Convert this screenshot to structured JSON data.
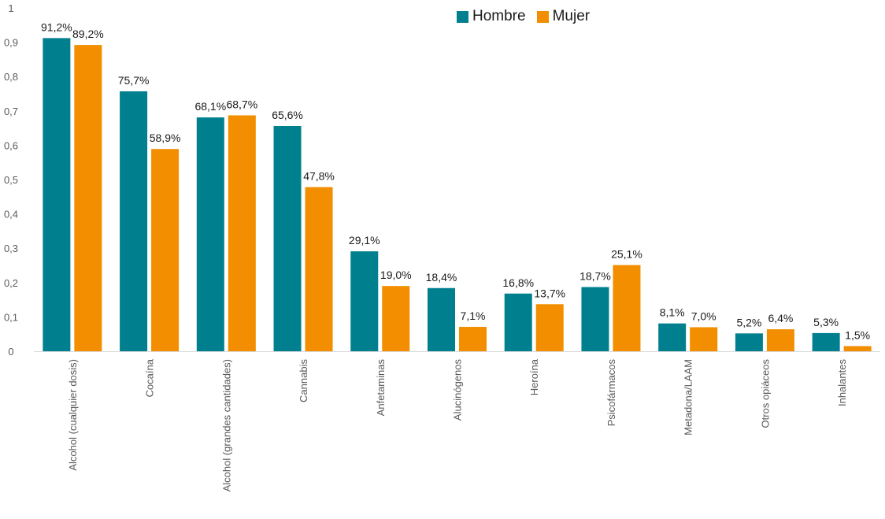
{
  "chart_data": {
    "type": "bar",
    "categories": [
      "Alcohol (cualquier dosis)",
      "Cocaína",
      "Alcohol (grandes cantidades)",
      "Cannabis",
      "Anfetaminas",
      "Alucinógenos",
      "Heroína",
      "Psicofármacos",
      "Metadona/LAAM",
      "Otros opiáceos",
      "Inhalantes"
    ],
    "series": [
      {
        "name": "Hombre",
        "color": "#00808f",
        "values": [
          0.912,
          0.757,
          0.681,
          0.656,
          0.291,
          0.184,
          0.168,
          0.187,
          0.081,
          0.052,
          0.053
        ],
        "labels": [
          "91,2%",
          "75,7%",
          "68,1%",
          "65,6%",
          "29,1%",
          "18,4%",
          "16,8%",
          "18,7%",
          "8,1%",
          "5,2%",
          "5,3%"
        ]
      },
      {
        "name": "Mujer",
        "color": "#f28e00",
        "values": [
          0.892,
          0.589,
          0.687,
          0.478,
          0.19,
          0.071,
          0.137,
          0.251,
          0.07,
          0.064,
          0.015
        ],
        "labels": [
          "89,2%",
          "58,9%",
          "68,7%",
          "47,8%",
          "19,0%",
          "7,1%",
          "13,7%",
          "25,1%",
          "7,0%",
          "6,4%",
          "1,5%"
        ]
      }
    ],
    "ylim": [
      0,
      1
    ],
    "yticks": [
      0,
      0.1,
      0.2,
      0.3,
      0.4,
      0.5,
      0.6,
      0.7,
      0.8,
      0.9,
      1
    ],
    "ytick_labels": [
      "0",
      "0,1",
      "0,2",
      "0,3",
      "0,4",
      "0,5",
      "0,6",
      "0,7",
      "0,8",
      "0,9",
      "1"
    ],
    "grid": false,
    "legend": "top-right"
  }
}
